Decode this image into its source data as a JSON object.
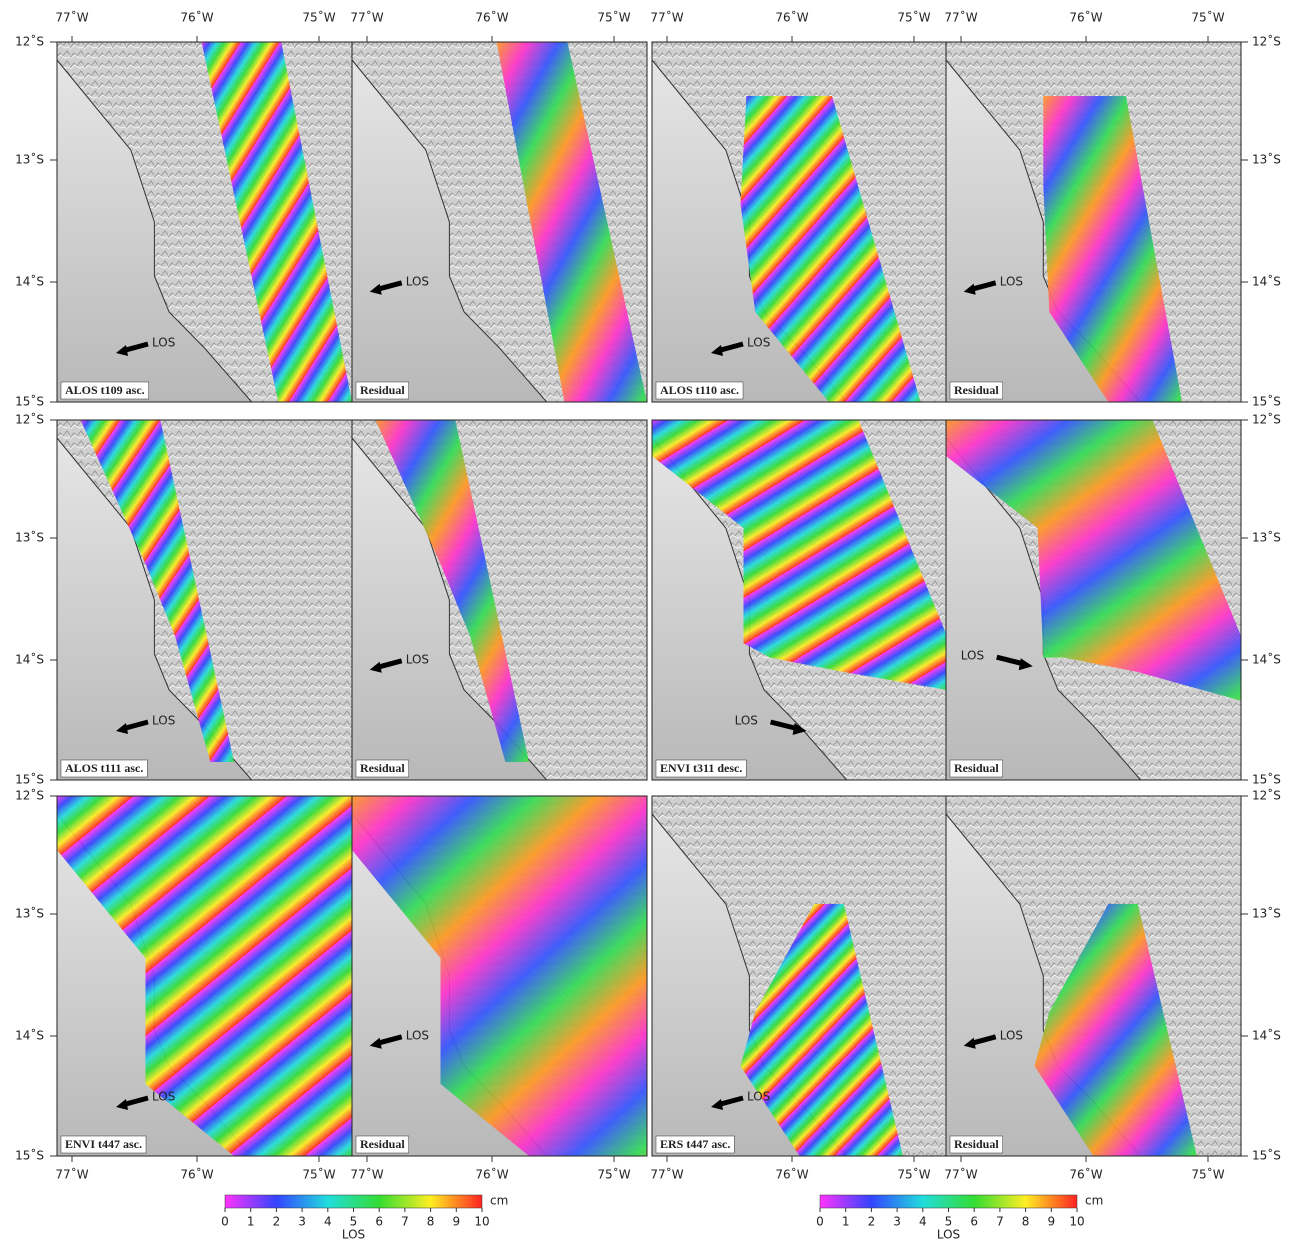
{
  "lon_labels": [
    "77˚W",
    "76˚W",
    "75˚W"
  ],
  "lat_labels": [
    "12˚S",
    "13˚S",
    "14˚S",
    "15˚S"
  ],
  "panels": [
    {
      "label": "ALOS t109 asc.",
      "arrow": "LOS"
    },
    {
      "label": "Residual",
      "arrow": "LOS"
    },
    {
      "label": "ALOS t110 asc.",
      "arrow": "LOS"
    },
    {
      "label": "Residual",
      "arrow": "LOS"
    },
    {
      "label": "ALOS t111 asc.",
      "arrow": "LOS"
    },
    {
      "label": "Residual",
      "arrow": "LOS"
    },
    {
      "label": "ENVI t311 desc.",
      "arrow": "LOS"
    },
    {
      "label": "Residual",
      "arrow": "LOS"
    },
    {
      "label": "ENVI t447 asc.",
      "arrow": "LOS"
    },
    {
      "label": "Residual",
      "arrow": "LOS"
    },
    {
      "label": "ERS t447 asc.",
      "arrow": "LOS"
    },
    {
      "label": "Residual",
      "arrow": "LOS"
    }
  ],
  "colorbars": [
    {
      "range": [
        0,
        10
      ],
      "ticks": [
        0,
        1,
        2,
        3,
        4,
        5,
        6,
        7,
        8,
        9,
        10
      ],
      "unit": "cm",
      "title": "LOS"
    },
    {
      "range": [
        0,
        10
      ],
      "ticks": [
        0,
        1,
        2,
        3,
        4,
        5,
        6,
        7,
        8,
        9,
        10
      ],
      "unit": "cm",
      "title": "LOS"
    }
  ]
}
